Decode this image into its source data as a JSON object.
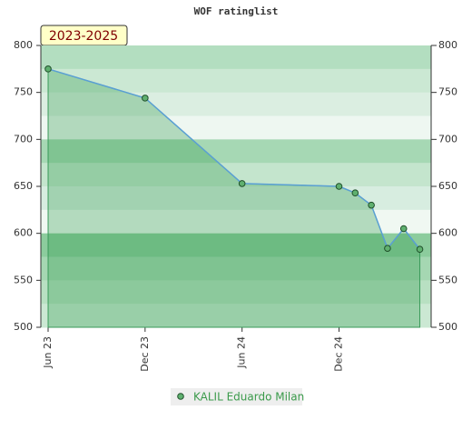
{
  "chart_data": {
    "type": "line",
    "title": "WOF ratinglist",
    "annotation": "2023-2025",
    "x": [
      0,
      6,
      12,
      18,
      19,
      20,
      21,
      22,
      23
    ],
    "xlim": [
      -0.45,
      23.7
    ],
    "xticks": [
      {
        "value": 0,
        "label": "Jun 23"
      },
      {
        "value": 6,
        "label": "Dec 23"
      },
      {
        "value": 12,
        "label": "Jun 24"
      },
      {
        "value": 18,
        "label": "Dec 24"
      }
    ],
    "series": [
      {
        "name": "KALIL Eduardo Milan",
        "color": "#5a9fd4",
        "values": [
          775,
          744,
          653,
          650,
          643,
          630,
          584,
          605,
          583
        ]
      }
    ],
    "ylim": [
      500,
      800
    ],
    "yticks": [
      500,
      550,
      600,
      650,
      700,
      750,
      800
    ],
    "y2lim": [
      500,
      800
    ],
    "y2ticks": [
      500,
      550,
      600,
      650,
      700,
      750,
      800
    ]
  }
}
